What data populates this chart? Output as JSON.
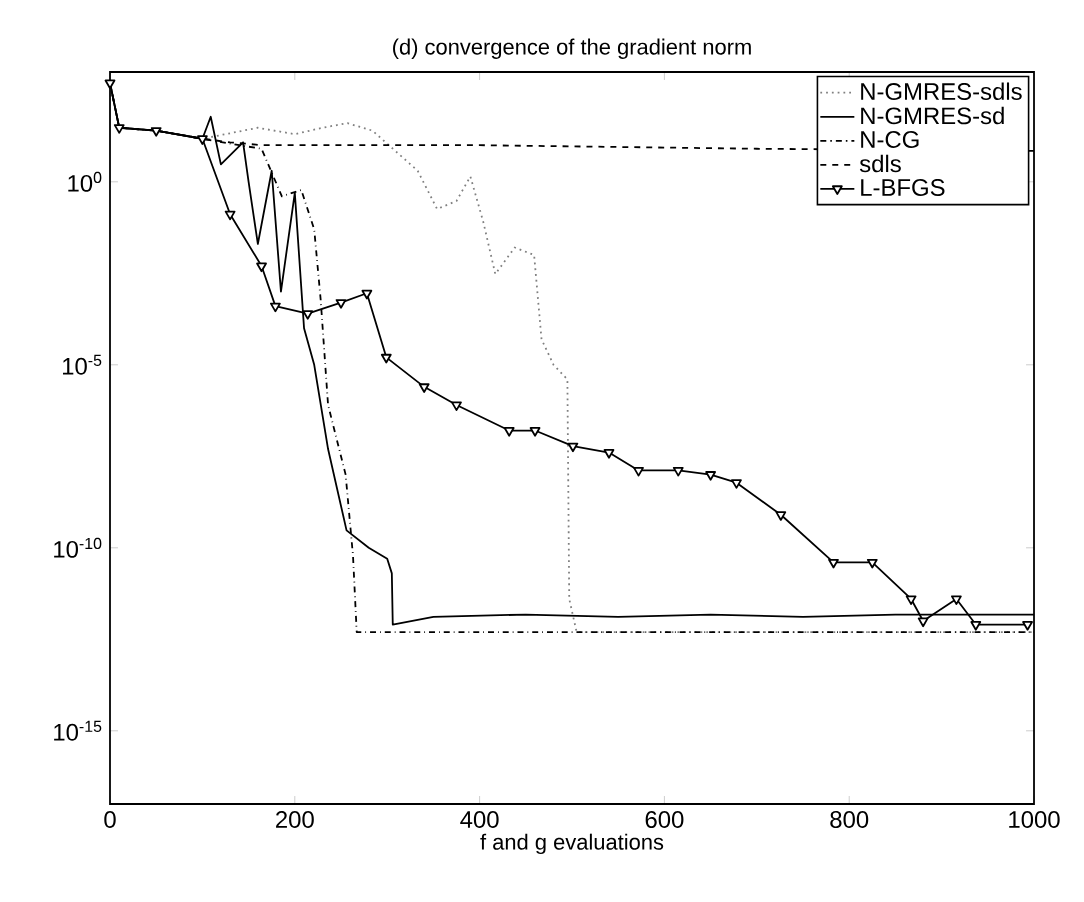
{
  "chart_data": {
    "type": "line",
    "title": "(d) convergence of the gradient norm",
    "xlabel": "f and g evaluations",
    "log": "y",
    "xlim": [
      0,
      1000
    ],
    "ylim": [
      1e-17,
      1000
    ],
    "xticks": [
      0,
      200,
      400,
      600,
      800,
      1000
    ],
    "yticks": [
      {
        "value": 1,
        "label": "10$^{0}$"
      },
      {
        "value": 1e-05,
        "label": "10$^{-5}$"
      },
      {
        "value": 1e-10,
        "label": "10$^{-10}$"
      },
      {
        "value": 1e-15,
        "label": "10$^{-15}$"
      }
    ],
    "legend": "top right",
    "grid": false,
    "series": [
      {
        "name": "N-GMRES-sdls",
        "color": "#808080",
        "line_style": "dotted",
        "x": [
          0,
          10,
          50,
          100,
          160,
          200,
          230,
          257,
          284,
          333,
          354,
          375,
          390,
          404,
          417,
          438,
          459,
          467,
          480,
          495,
          497,
          505,
          1000
        ],
        "values": [
          500,
          30,
          25,
          15,
          30,
          20,
          30,
          40,
          25,
          2,
          0.18,
          0.3,
          1.4,
          0.08,
          0.003,
          0.016,
          0.01,
          5e-05,
          1e-05,
          4e-06,
          4e-12,
          5e-13,
          5e-13
        ]
      },
      {
        "name": "N-GMRES-sd",
        "color": "#000000",
        "line_style": "solid",
        "x": [
          0,
          10,
          50,
          100,
          109,
          120,
          144,
          150,
          160,
          175,
          185,
          200,
          210,
          221,
          236,
          256,
          280,
          300,
          305,
          306,
          350,
          450,
          550,
          650,
          750,
          850,
          1000
        ],
        "values": [
          500,
          30,
          25,
          15,
          60,
          3,
          12,
          1,
          0.02,
          2,
          0.001,
          0.5,
          0.0001,
          1e-05,
          5e-08,
          3e-10,
          1e-10,
          5e-11,
          2e-11,
          8e-13,
          1.3e-12,
          1.5e-12,
          1.3e-12,
          1.5e-12,
          1.3e-12,
          1.5e-12,
          1.5e-12
        ]
      },
      {
        "name": "N-CG",
        "color": "#000000",
        "line_style": "dashdot",
        "x": [
          0,
          10,
          50,
          100,
          140,
          164,
          186,
          207,
          221,
          228,
          236,
          255,
          263,
          267,
          1000
        ],
        "values": [
          500,
          30,
          25,
          15,
          10,
          8,
          0.4,
          0.6,
          0.05,
          0.0006,
          8e-07,
          1e-08,
          6e-11,
          5e-13,
          5e-13
        ]
      },
      {
        "name": "sdls",
        "color": "#000000",
        "line_style": "dashed",
        "x": [
          0,
          10,
          50,
          100,
          130,
          165,
          400,
          700,
          1000
        ],
        "values": [
          500,
          30,
          25,
          15,
          12,
          10,
          10,
          8,
          7
        ]
      },
      {
        "name": "L-BFGS",
        "color": "#000000",
        "line_style": "solid",
        "marker": "triangle",
        "x": [
          0,
          10,
          50,
          100,
          130,
          164,
          179,
          214,
          250,
          278,
          299,
          340,
          375,
          432,
          460,
          501,
          540,
          572,
          615,
          650,
          678,
          726,
          783,
          825,
          867,
          880,
          916,
          937,
          993
        ],
        "values": [
          500,
          30,
          25,
          15,
          0.13,
          0.005,
          0.0004,
          0.00025,
          0.0005,
          0.0009,
          1.6e-05,
          2.5e-06,
          8e-07,
          1.6e-07,
          1.6e-07,
          6e-08,
          4e-08,
          1.3e-08,
          1.3e-08,
          1e-08,
          6e-09,
          8e-10,
          4e-11,
          4e-11,
          4e-12,
          1e-12,
          4e-12,
          8e-13,
          8e-13
        ]
      }
    ]
  }
}
